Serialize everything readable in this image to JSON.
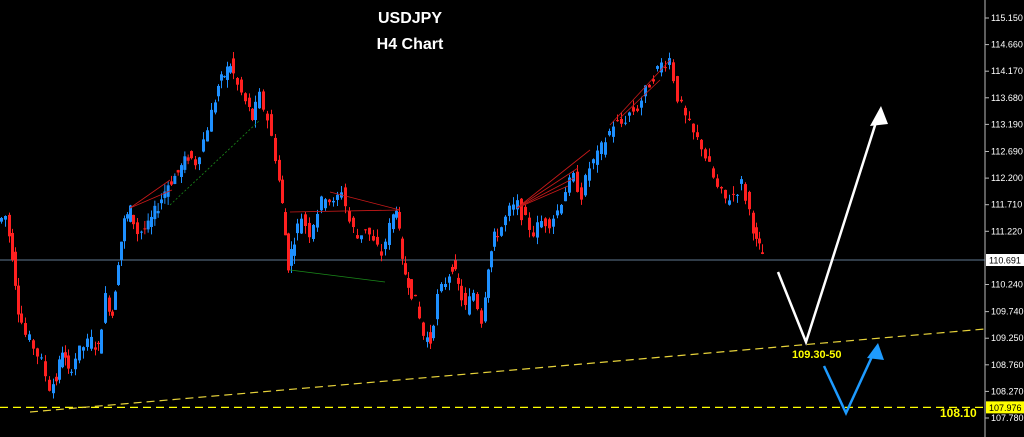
{
  "chart_data": {
    "type": "candlestick",
    "title": "USDJPY",
    "subtitle": "H4 Chart",
    "ylim": [
      107.78,
      115.3
    ],
    "y_ticks": [
      "115.150",
      "114.660",
      "114.170",
      "113.680",
      "113.190",
      "112.690",
      "112.200",
      "111.710",
      "111.220",
      "110.240",
      "109.740",
      "109.250",
      "108.760",
      "108.270",
      "107.780"
    ],
    "current_price": "110.691",
    "lower_level_label": "107.976",
    "annotations": [
      "109.30-50",
      "108.10"
    ],
    "price_path": [
      [
        0,
        111.4
      ],
      [
        8,
        111.5
      ],
      [
        14,
        110.8
      ],
      [
        20,
        109.8
      ],
      [
        28,
        109.3
      ],
      [
        36,
        109.1
      ],
      [
        44,
        108.8
      ],
      [
        52,
        108.35
      ],
      [
        58,
        108.5
      ],
      [
        64,
        109.05
      ],
      [
        70,
        108.6
      ],
      [
        78,
        108.9
      ],
      [
        86,
        109.1
      ],
      [
        94,
        109.2
      ],
      [
        100,
        109.05
      ],
      [
        108,
        110.0
      ],
      [
        114,
        109.7
      ],
      [
        120,
        110.7
      ],
      [
        126,
        111.4
      ],
      [
        132,
        111.6
      ],
      [
        140,
        111.2
      ],
      [
        150,
        111.3
      ],
      [
        160,
        111.7
      ],
      [
        170,
        112.1
      ],
      [
        180,
        112.3
      ],
      [
        190,
        112.6
      ],
      [
        198,
        112.5
      ],
      [
        206,
        112.9
      ],
      [
        214,
        113.4
      ],
      [
        220,
        113.9
      ],
      [
        226,
        114.1
      ],
      [
        232,
        114.3
      ],
      [
        240,
        113.9
      ],
      [
        248,
        113.6
      ],
      [
        254,
        113.3
      ],
      [
        262,
        113.7
      ],
      [
        270,
        113.3
      ],
      [
        278,
        112.6
      ],
      [
        284,
        111.7
      ],
      [
        290,
        110.6
      ],
      [
        296,
        111.1
      ],
      [
        304,
        111.5
      ],
      [
        312,
        111.2
      ],
      [
        320,
        111.6
      ],
      [
        328,
        111.9
      ],
      [
        336,
        111.7
      ],
      [
        344,
        112.0
      ],
      [
        352,
        111.4
      ],
      [
        360,
        111.1
      ],
      [
        368,
        111.3
      ],
      [
        376,
        111.0
      ],
      [
        384,
        110.8
      ],
      [
        392,
        111.3
      ],
      [
        398,
        111.7
      ],
      [
        404,
        110.6
      ],
      [
        410,
        110.3
      ],
      [
        418,
        109.9
      ],
      [
        426,
        109.3
      ],
      [
        432,
        109.2
      ],
      [
        440,
        110.0
      ],
      [
        448,
        110.3
      ],
      [
        454,
        110.6
      ],
      [
        460,
        110.2
      ],
      [
        468,
        109.8
      ],
      [
        476,
        110.1
      ],
      [
        484,
        109.6
      ],
      [
        490,
        110.6
      ],
      [
        496,
        111.1
      ],
      [
        504,
        111.3
      ],
      [
        512,
        111.6
      ],
      [
        520,
        111.7
      ],
      [
        528,
        111.4
      ],
      [
        536,
        111.2
      ],
      [
        544,
        111.4
      ],
      [
        552,
        111.4
      ],
      [
        560,
        111.6
      ],
      [
        568,
        112.0
      ],
      [
        576,
        112.2
      ],
      [
        584,
        111.9
      ],
      [
        592,
        112.4
      ],
      [
        600,
        112.6
      ],
      [
        608,
        112.9
      ],
      [
        616,
        113.2
      ],
      [
        624,
        113.2
      ],
      [
        632,
        113.4
      ],
      [
        640,
        113.5
      ],
      [
        648,
        113.8
      ],
      [
        656,
        114.1
      ],
      [
        664,
        114.3
      ],
      [
        672,
        114.4
      ],
      [
        680,
        113.7
      ],
      [
        688,
        113.3
      ],
      [
        696,
        113.0
      ],
      [
        704,
        112.8
      ],
      [
        712,
        112.4
      ],
      [
        720,
        112.0
      ],
      [
        728,
        111.8
      ],
      [
        736,
        111.9
      ],
      [
        744,
        112.1
      ],
      [
        752,
        111.6
      ],
      [
        758,
        111.0
      ],
      [
        764,
        110.8
      ]
    ]
  }
}
